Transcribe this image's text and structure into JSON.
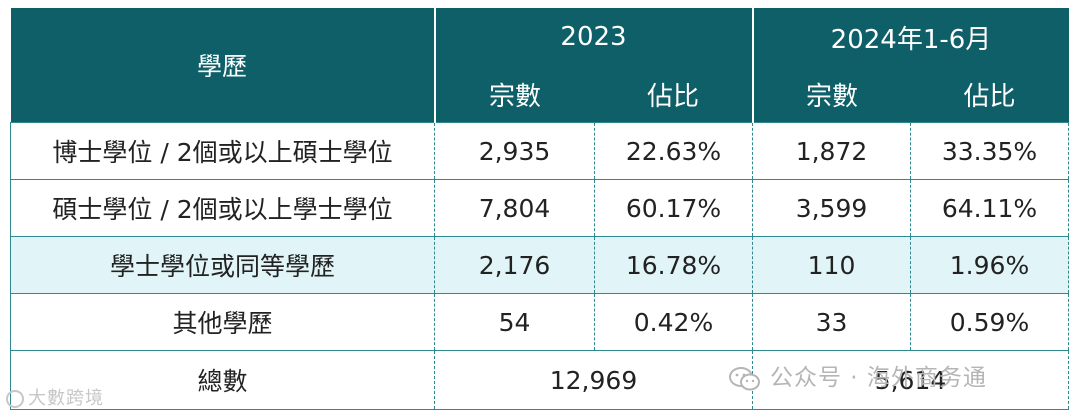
{
  "header": {
    "education": "學歷",
    "year_2023": "2023",
    "year_2024": "2024年1-6月",
    "count": "宗數",
    "share": "佔比"
  },
  "rows": [
    {
      "label": "博士學位 / 2個或以上碩士學位",
      "c2023": "2,935",
      "p2023": "22.63%",
      "c2024": "1,872",
      "p2024": "33.35%"
    },
    {
      "label": "碩士學位 / 2個或以上學士學位",
      "c2023": "7,804",
      "p2023": "60.17%",
      "c2024": "3,599",
      "p2024": "64.11%"
    },
    {
      "label": "學士學位或同等學歷",
      "c2023": "2,176",
      "p2023": "16.78%",
      "c2024": "110",
      "p2024": "1.96%"
    },
    {
      "label": "其他學歷",
      "c2023": "54",
      "p2023": "0.42%",
      "c2024": "33",
      "p2024": "0.59%"
    }
  ],
  "total": {
    "label": "總數",
    "v2023": "12,969",
    "v2024": "5,614"
  },
  "watermarks": {
    "left": "大數跨境",
    "right": "公众号 · 海外商务通"
  },
  "colors": {
    "header_bg": "#0e5f68",
    "highlight_row": "#e1f5f8",
    "border": "#2f8a90"
  }
}
